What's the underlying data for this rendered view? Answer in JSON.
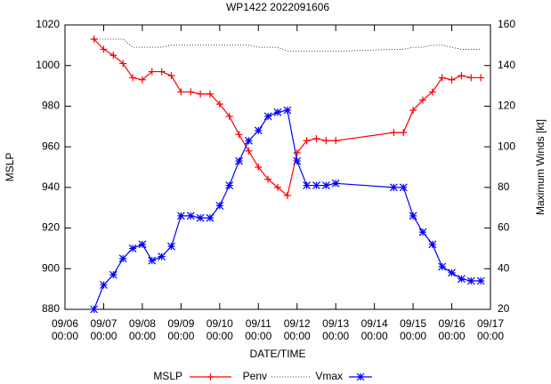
{
  "chart_data": {
    "type": "line",
    "title": "WP1422 2022091606",
    "x_label": "DATE/TIME",
    "y_label": "MSLP",
    "y2_label": "Maximum Winds [kt]",
    "x": [
      "09/06 18:00",
      "09/07 00:00",
      "09/07 06:00",
      "09/07 12:00",
      "09/07 18:00",
      "09/08 00:00",
      "09/08 06:00",
      "09/08 12:00",
      "09/08 18:00",
      "09/09 00:00",
      "09/09 06:00",
      "09/09 12:00",
      "09/09 18:00",
      "09/10 00:00",
      "09/10 06:00",
      "09/10 12:00",
      "09/10 18:00",
      "09/11 00:00",
      "09/11 06:00",
      "09/11 12:00",
      "09/11 18:00",
      "09/12 00:00",
      "09/12 06:00",
      "09/12 12:00",
      "09/12 18:00",
      "09/13 00:00",
      "09/14 12:00",
      "09/14 18:00",
      "09/15 00:00",
      "09/15 06:00",
      "09/15 12:00",
      "09/15 18:00",
      "09/16 00:00",
      "09/16 06:00",
      "09/16 12:00",
      "09/16 18:00"
    ],
    "series": [
      {
        "name": "MSLP",
        "color": "#ff0000",
        "marker": "plus",
        "values": [
          1013,
          1008,
          1005,
          1001,
          994,
          993,
          997,
          997,
          995,
          987,
          987,
          986,
          986,
          981,
          975,
          966,
          958,
          950,
          944,
          940,
          936,
          957,
          963,
          964,
          963,
          963,
          967,
          967,
          978,
          983,
          987,
          994,
          993,
          995,
          994,
          994
        ]
      },
      {
        "name": "Penv",
        "color": "#000000",
        "dash": "dotted",
        "values": [
          1013,
          1013,
          1013,
          1013,
          1009,
          1009,
          1009,
          1009,
          1010,
          1010,
          1010,
          1010,
          1010,
          1010,
          1010,
          1010,
          1010,
          1009,
          1009,
          1009,
          1007,
          1007,
          1007,
          1007,
          1007,
          1007,
          1008,
          1008,
          1009,
          1009,
          1010,
          1010,
          1009,
          1008,
          1008,
          1008
        ]
      },
      {
        "name": "Vmax",
        "color": "#0000ff",
        "marker": "star",
        "axis": "y2",
        "values": [
          20,
          32,
          37,
          45,
          50,
          52,
          44,
          46,
          51,
          66,
          66,
          65,
          65,
          71,
          81,
          93,
          103,
          108,
          115,
          117,
          118,
          93,
          81,
          81,
          81,
          82,
          80,
          80,
          66,
          58,
          52,
          41,
          38,
          35,
          34,
          34
        ]
      }
    ],
    "xlim": [
      "09/06 00:00",
      "09/17 00:00"
    ],
    "xticks": [
      "09/06 00:00",
      "09/07 00:00",
      "09/08 00:00",
      "09/09 00:00",
      "09/10 00:00",
      "09/11 00:00",
      "09/12 00:00",
      "09/13 00:00",
      "09/14 00:00",
      "09/15 00:00",
      "09/16 00:00",
      "09/17 00:00"
    ],
    "ylim": [
      880,
      1020
    ],
    "yticks": [
      880,
      900,
      920,
      940,
      960,
      980,
      1000,
      1020
    ],
    "y2lim": [
      20,
      160
    ],
    "y2ticks": [
      20,
      40,
      60,
      80,
      100,
      120,
      140,
      160
    ],
    "legend": "bottom"
  }
}
